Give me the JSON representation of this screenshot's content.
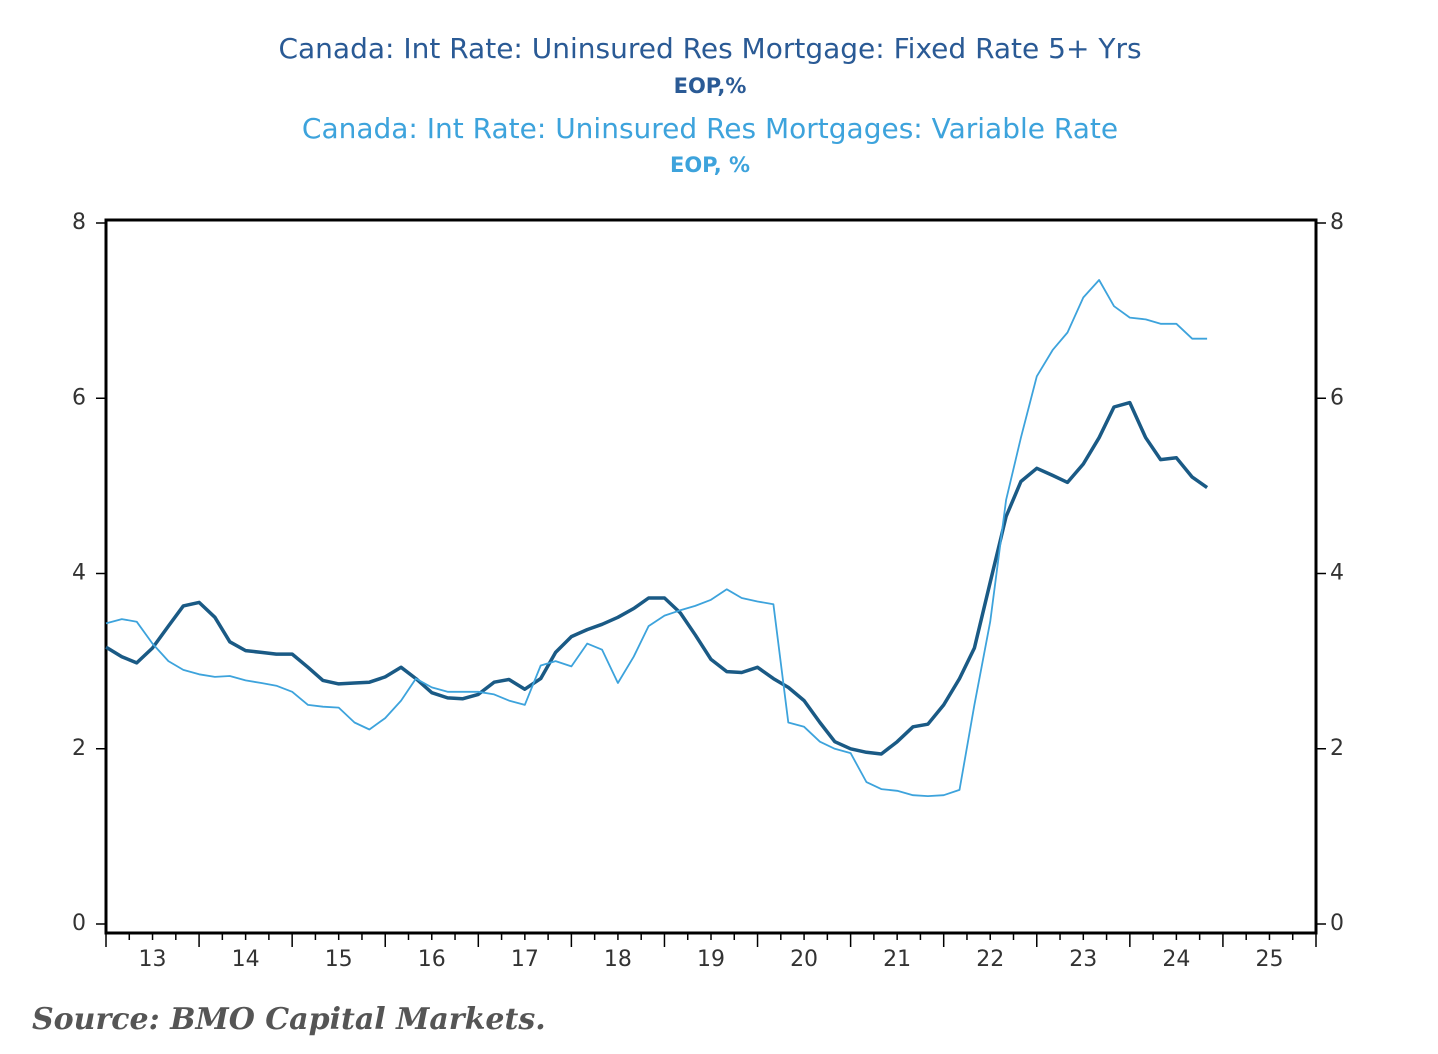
{
  "chart_data": {
    "type": "line",
    "source": "Source: BMO Capital Markets.",
    "x": [
      2013,
      2013.17,
      2013.33,
      2013.5,
      2013.67,
      2013.83,
      2014,
      2014.17,
      2014.33,
      2014.5,
      2014.67,
      2014.83,
      2015,
      2015.17,
      2015.33,
      2015.5,
      2015.67,
      2015.83,
      2016,
      2016.17,
      2016.33,
      2016.5,
      2016.67,
      2016.83,
      2017,
      2017.17,
      2017.33,
      2017.5,
      2017.67,
      2017.83,
      2018,
      2018.17,
      2018.33,
      2018.5,
      2018.67,
      2018.83,
      2019,
      2019.17,
      2019.33,
      2019.5,
      2019.67,
      2019.83,
      2020,
      2020.17,
      2020.33,
      2020.5,
      2020.67,
      2020.83,
      2021,
      2021.17,
      2021.33,
      2021.5,
      2021.67,
      2021.83,
      2022,
      2022.17,
      2022.33,
      2022.5,
      2022.67,
      2022.83,
      2023,
      2023.17,
      2023.33,
      2023.5,
      2023.67,
      2023.83,
      2024,
      2024.17,
      2024.33,
      2024.5,
      2024.67,
      2024.83
    ],
    "series": [
      {
        "name": "Canada: Int Rate: Uninsured Res Mortgage: Fixed Rate 5+ Yrs",
        "unit": "EOP,%",
        "color": "#1a5a85",
        "title_color": "#2a5a95",
        "width": 3.5,
        "values": [
          3.16,
          3.05,
          2.98,
          3.15,
          3.4,
          3.63,
          3.67,
          3.5,
          3.22,
          3.12,
          3.1,
          3.08,
          3.08,
          2.93,
          2.78,
          2.74,
          2.75,
          2.76,
          2.82,
          2.93,
          2.8,
          2.64,
          2.58,
          2.57,
          2.62,
          2.76,
          2.79,
          2.68,
          2.8,
          3.1,
          3.28,
          3.36,
          3.42,
          3.5,
          3.6,
          3.72,
          3.72,
          3.55,
          3.3,
          3.02,
          2.88,
          2.87,
          2.93,
          2.8,
          2.7,
          2.55,
          2.3,
          2.08,
          2.0,
          1.96,
          1.94,
          2.08,
          2.25,
          2.28,
          2.5,
          2.8,
          3.15,
          3.9,
          4.65,
          5.05,
          5.2,
          5.12,
          5.04,
          5.25,
          5.55,
          5.9,
          5.95,
          5.55,
          5.3,
          5.32,
          5.1,
          4.98
        ]
      },
      {
        "name": "Canada: Int Rate: Uninsured Res Mortgages: Variable Rate",
        "unit": "EOP, %",
        "color": "#3da3dc",
        "title_color": "#3da3dc",
        "width": 1.8,
        "values": [
          3.43,
          3.48,
          3.45,
          3.2,
          3.0,
          2.9,
          2.85,
          2.82,
          2.83,
          2.78,
          2.75,
          2.72,
          2.65,
          2.5,
          2.48,
          2.47,
          2.3,
          2.22,
          2.35,
          2.55,
          2.8,
          2.7,
          2.65,
          2.65,
          2.65,
          2.62,
          2.55,
          2.5,
          2.95,
          3.0,
          2.94,
          3.2,
          3.13,
          2.75,
          3.05,
          3.4,
          3.52,
          3.58,
          3.63,
          3.7,
          3.82,
          3.72,
          3.68,
          3.65,
          2.3,
          2.25,
          2.08,
          2.0,
          1.95,
          1.62,
          1.54,
          1.52,
          1.47,
          1.46,
          1.47,
          1.53,
          2.5,
          3.45,
          4.84,
          5.55,
          6.25,
          6.55,
          6.75,
          7.15,
          7.35,
          7.05,
          6.92,
          6.9,
          6.85,
          6.85,
          6.68,
          6.68
        ]
      }
    ],
    "xlim": [
      2013,
      2026
    ],
    "xticks": [
      {
        "value": 2013.5,
        "label": "13"
      },
      {
        "value": 2014.5,
        "label": "14"
      },
      {
        "value": 2015.5,
        "label": "15"
      },
      {
        "value": 2016.5,
        "label": "16"
      },
      {
        "value": 2017.5,
        "label": "17"
      },
      {
        "value": 2018.5,
        "label": "18"
      },
      {
        "value": 2019.5,
        "label": "19"
      },
      {
        "value": 2020.5,
        "label": "20"
      },
      {
        "value": 2021.5,
        "label": "21"
      },
      {
        "value": 2022.5,
        "label": "22"
      },
      {
        "value": 2023.5,
        "label": "23"
      },
      {
        "value": 2024.5,
        "label": "24"
      },
      {
        "value": 2025.5,
        "label": "25"
      }
    ],
    "ylim": [
      0,
      8
    ],
    "yticks": [
      0,
      2,
      4,
      6,
      8
    ],
    "y2lim": [
      0,
      8
    ],
    "y2ticks": [
      0,
      2,
      4,
      6,
      8
    ],
    "grid": false
  }
}
